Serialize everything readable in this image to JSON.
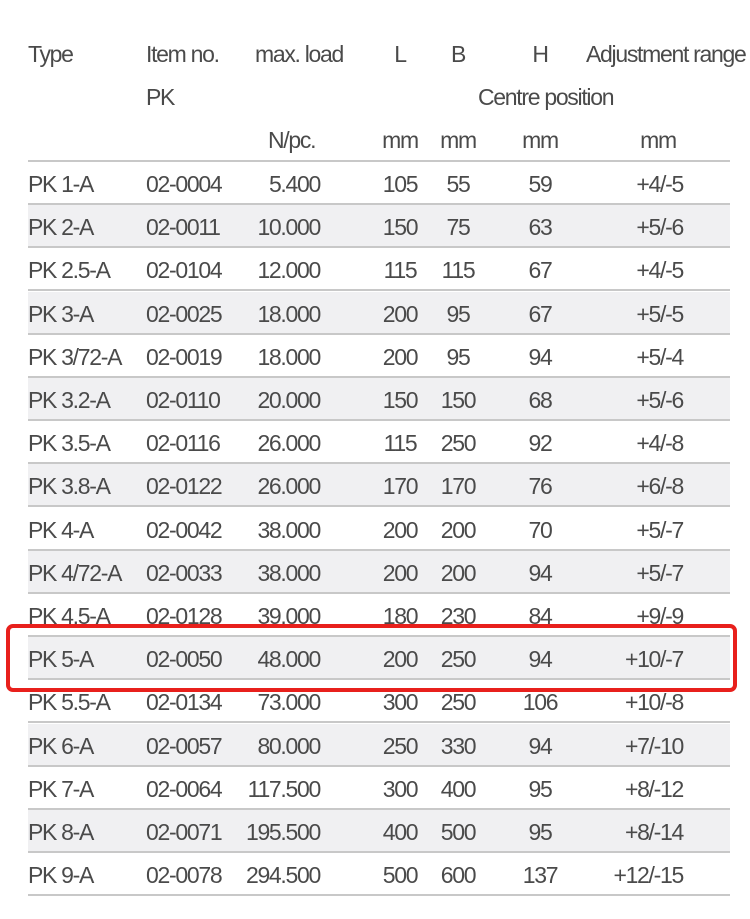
{
  "header": {
    "type": "Type",
    "item_no": "Item no.",
    "item_no_sub": "PK",
    "max_load": "max. load",
    "L": "L",
    "B": "B",
    "H": "H",
    "centre_position": "Centre position",
    "adjustment_range": "Adjustment range",
    "units": {
      "max_load": "N/pc.",
      "L": "mm",
      "B": "mm",
      "H": "mm",
      "adjustment": "mm"
    }
  },
  "highlight_color": "#e8201c",
  "highlighted_row": "PK 5-A",
  "rows": [
    [
      "PK 1-A",
      "02-0004",
      "5.400",
      "105",
      "55",
      "59",
      "+4/-5"
    ],
    [
      "PK 2-A",
      "02-0011",
      "10.000",
      "150",
      "75",
      "63",
      "+5/-6"
    ],
    [
      "PK 2.5-A",
      "02-0104",
      "12.000",
      "115",
      "115",
      "67",
      "+4/-5"
    ],
    [
      "PK 3-A",
      "02-0025",
      "18.000",
      "200",
      "95",
      "67",
      "+5/-5"
    ],
    [
      "PK 3/72-A",
      "02-0019",
      "18.000",
      "200",
      "95",
      "94",
      "+5/-4"
    ],
    [
      "PK 3.2-A",
      "02-0110",
      "20.000",
      "150",
      "150",
      "68",
      "+5/-6"
    ],
    [
      "PK 3.5-A",
      "02-0116",
      "26.000",
      "115",
      "250",
      "92",
      "+4/-8"
    ],
    [
      "PK 3.8-A",
      "02-0122",
      "26.000",
      "170",
      "170",
      "76",
      "+6/-8"
    ],
    [
      "PK 4-A",
      "02-0042",
      "38.000",
      "200",
      "200",
      "70",
      "+5/-7"
    ],
    [
      "PK 4/72-A",
      "02-0033",
      "38.000",
      "200",
      "200",
      "94",
      "+5/-7"
    ],
    [
      "PK 4.5-A",
      "02-0128",
      "39.000",
      "180",
      "230",
      "84",
      "+9/-9"
    ],
    [
      "PK 5-A",
      "02-0050",
      "48.000",
      "200",
      "250",
      "94",
      "+10/-7"
    ],
    [
      "PK 5.5-A",
      "02-0134",
      "73.000",
      "300",
      "250",
      "106",
      "+10/-8"
    ],
    [
      "PK 6-A",
      "02-0057",
      "80.000",
      "250",
      "330",
      "94",
      "+7/-10"
    ],
    [
      "PK 7-A",
      "02-0064",
      "117.500",
      "300",
      "400",
      "95",
      "+8/-12"
    ],
    [
      "PK 8-A",
      "02-0071",
      "195.500",
      "400",
      "500",
      "95",
      "+8/-14"
    ],
    [
      "PK 9-A",
      "02-0078",
      "294.500",
      "500",
      "600",
      "137",
      "+12/-15"
    ]
  ]
}
